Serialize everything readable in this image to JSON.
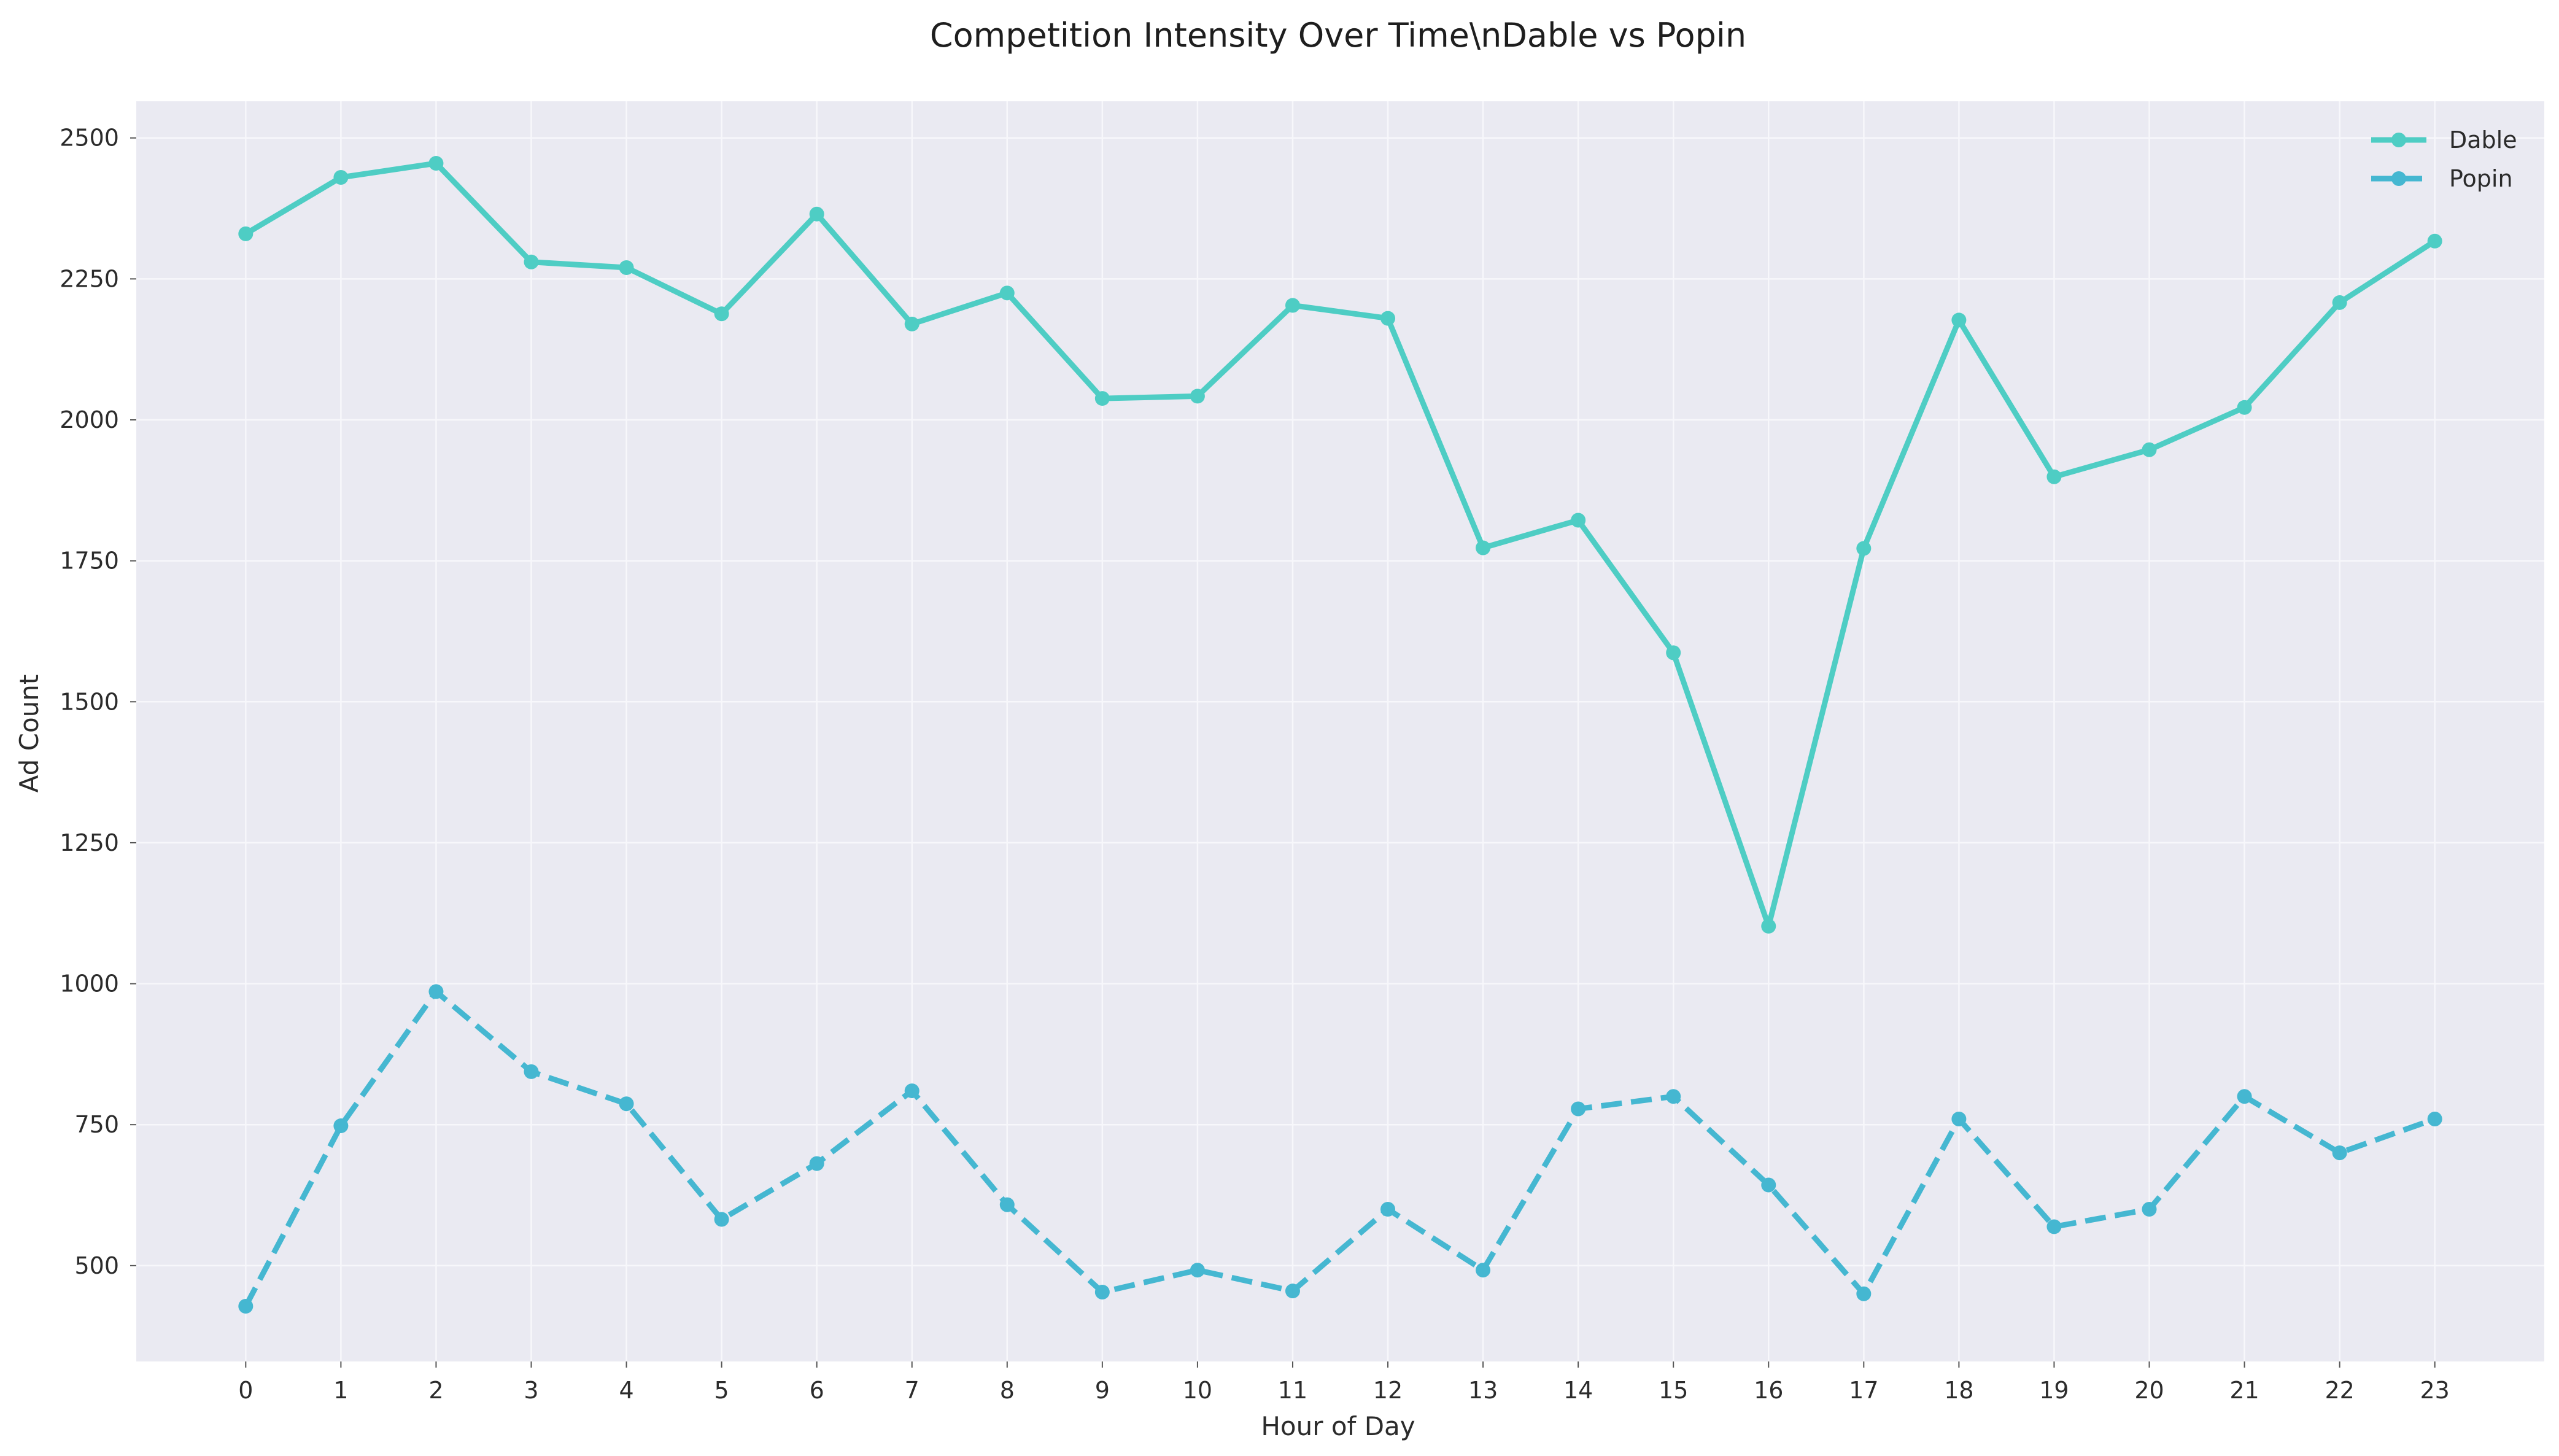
{
  "chart_data": {
    "type": "line",
    "title": "Competition Intensity Over Time\\nDable vs Popin",
    "xlabel": "Hour of Day",
    "ylabel": "Ad Count",
    "x": [
      0,
      1,
      2,
      3,
      4,
      5,
      6,
      7,
      8,
      9,
      10,
      11,
      12,
      13,
      14,
      15,
      16,
      17,
      18,
      19,
      20,
      21,
      22,
      23
    ],
    "xlim": [
      -1.15,
      24.15
    ],
    "ylim": [
      330,
      2565
    ],
    "yticks": [
      500,
      750,
      1000,
      1250,
      1500,
      1750,
      2000,
      2250,
      2500
    ],
    "grid": true,
    "legend_position": "top-right",
    "series": [
      {
        "name": "Dable",
        "color": "#4ecdc4",
        "line_style": "solid",
        "values": [
          2330,
          2430,
          2455,
          2280,
          2270,
          2188,
          2365,
          2170,
          2225,
          2038,
          2042,
          2203,
          2180,
          1773,
          1822,
          1587,
          1102,
          1772,
          2177,
          1899,
          1947,
          2022,
          2208,
          2317
        ]
      },
      {
        "name": "Popin",
        "color": "#45b7d1",
        "line_style": "dashed",
        "values": [
          428,
          748,
          986,
          844,
          787,
          582,
          681,
          810,
          608,
          453,
          492,
          455,
          600,
          492,
          778,
          800,
          643,
          450,
          760,
          569,
          600,
          800,
          700,
          760
        ]
      }
    ],
    "colors": {
      "plot_background": "#eaeaf2",
      "grid": "#f7f7fb"
    }
  }
}
